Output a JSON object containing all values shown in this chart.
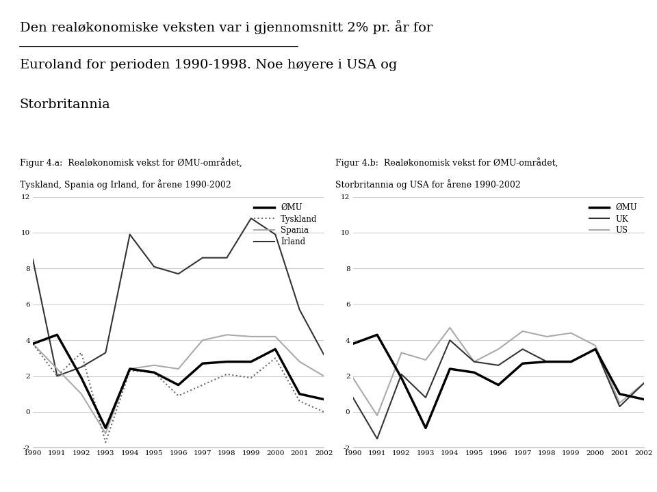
{
  "title_line1": "Den realøkonomiske veksten var i gjennomsnitt 2% pr. år for",
  "title_line2": "Euroland for perioden 1990-1998. Noe høyere i USA og",
  "title_line3": "Storbritannia",
  "underline_word": "Den realøkonomiske veksten",
  "fig_a_l1": "Figur 4.a:  Realøkonomisk vekst for ØMU-området,",
  "fig_a_l2": "Tyskland, Spania og Irland, for årene 1990-2002",
  "fig_b_l1": "Figur 4.b:  Realøkonomisk vekst for ØMU-området,",
  "fig_b_l2": "Storbritannia og USA for årene 1990-2002",
  "years": [
    1990,
    1991,
    1992,
    1993,
    1994,
    1995,
    1996,
    1997,
    1998,
    1999,
    2000,
    2001,
    2002
  ],
  "omu_a": [
    3.8,
    4.3,
    1.9,
    -0.9,
    2.4,
    2.2,
    1.5,
    2.7,
    2.8,
    2.8,
    3.5,
    1.0,
    0.7
  ],
  "tyskland": [
    3.8,
    2.0,
    3.3,
    -1.7,
    2.3,
    2.2,
    0.9,
    1.5,
    2.1,
    1.9,
    3.0,
    0.6,
    0.0
  ],
  "spania": [
    3.8,
    2.4,
    1.0,
    -1.2,
    2.4,
    2.6,
    2.4,
    4.0,
    4.3,
    4.2,
    4.2,
    2.8,
    2.0
  ],
  "irland": [
    8.5,
    2.0,
    2.5,
    3.3,
    9.9,
    8.1,
    7.7,
    8.6,
    8.6,
    10.8,
    9.9,
    5.7,
    3.2
  ],
  "omu_b": [
    3.8,
    4.3,
    1.9,
    -0.9,
    2.4,
    2.2,
    1.5,
    2.7,
    2.8,
    2.8,
    3.5,
    1.0,
    0.7
  ],
  "uk": [
    0.8,
    -1.5,
    2.1,
    0.8,
    4.0,
    2.8,
    2.6,
    3.5,
    2.8,
    2.8,
    3.5,
    0.3,
    1.6
  ],
  "us": [
    1.9,
    -0.2,
    3.3,
    2.9,
    4.7,
    2.8,
    3.5,
    4.5,
    4.2,
    4.4,
    3.7,
    0.5,
    1.6
  ],
  "background_color": "#ffffff",
  "ylim": [
    -2,
    12
  ],
  "yticks": [
    -2,
    0,
    2,
    4,
    6,
    8,
    10,
    12
  ],
  "ytick_labels": [
    "-2",
    "0",
    "2",
    "4",
    "6",
    "8",
    "10",
    "12"
  ],
  "grid_color": "#cccccc",
  "omu_color": "#000000",
  "tyskland_color": "#666666",
  "spania_color": "#aaaaaa",
  "irland_color": "#333333",
  "uk_color": "#333333",
  "us_color": "#aaaaaa",
  "omu_lw": 2.5,
  "line_lw": 1.5,
  "title_fontsize": 14,
  "caption_fontsize": 9,
  "tick_fontsize": 7.5,
  "legend_fontsize": 8.5
}
